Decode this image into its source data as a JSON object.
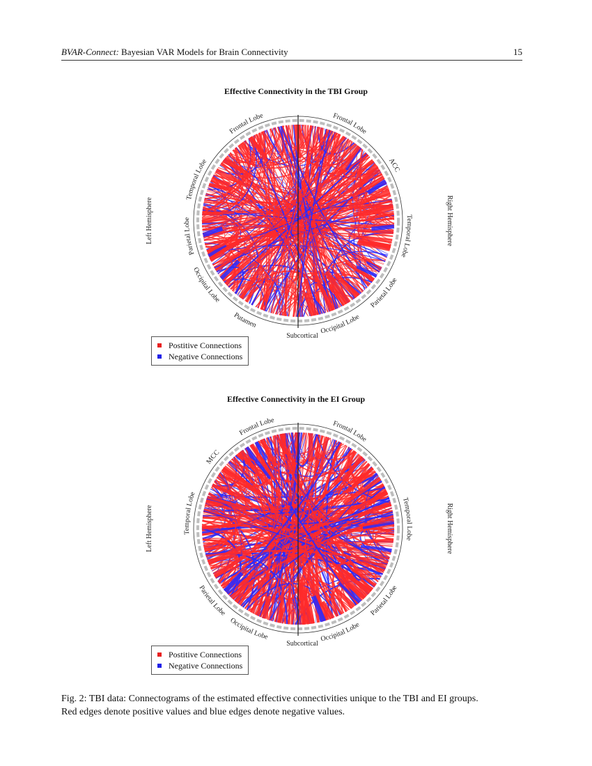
{
  "header": {
    "title_italic": "BVAR-Connect:",
    "title_rest": " Bayesian VAR Models for Brain Connectivity",
    "page_number": "15"
  },
  "colors": {
    "positive": "#ff2a2a",
    "negative": "#2a2aff",
    "ring": "#bdbdbd"
  },
  "chart_data": [
    {
      "type": "chord",
      "title": "Effective Connectivity in the TBI Group",
      "hemisphere_labels": [
        "Left Hemisphere",
        "Right Hemisphere"
      ],
      "segments_left": [
        "Frontal Lobe",
        "Temporal Lobe",
        "Parietal Lobe",
        "Occipital Lobe",
        "Putamen"
      ],
      "segments_right": [
        "Frontal Lobe",
        "ACC",
        "Temporal Lobe",
        "Parietal Lobe",
        "Occipital Lobe"
      ],
      "bottom_label": "Subcortical",
      "legend": [
        {
          "label": "Postitive Connections",
          "series": "positive"
        },
        {
          "label": "Negative Connections",
          "series": "negative"
        }
      ],
      "edge_density": {
        "positive": 0.8,
        "negative": 0.2
      }
    },
    {
      "type": "chord",
      "title": "Effective Connectivity in the EI Group",
      "hemisphere_labels": [
        "Left Hemisphere",
        "Right Hemisphere"
      ],
      "segments_left": [
        "Frontal Lobe",
        "MCC",
        "Temporal Lobe",
        "Parietal Lobe",
        "Occipital Lobe"
      ],
      "segments_right": [
        "Frontal Lobe",
        "Temporal Lobe",
        "Parietal Lobe",
        "Occipital Lobe"
      ],
      "bottom_label": "Subcortical",
      "legend": [
        {
          "label": "Postitive Connections",
          "series": "positive"
        },
        {
          "label": "Negative Connections",
          "series": "negative"
        }
      ],
      "edge_density": {
        "positive": 0.7,
        "negative": 0.3
      }
    }
  ],
  "caption": {
    "line1": "Fig. 2: TBI data: Connectograms of the estimated effective connectivities unique to the TBI and EI groups.",
    "line2": "Red edges denote positive values and blue edges denote negative values."
  }
}
